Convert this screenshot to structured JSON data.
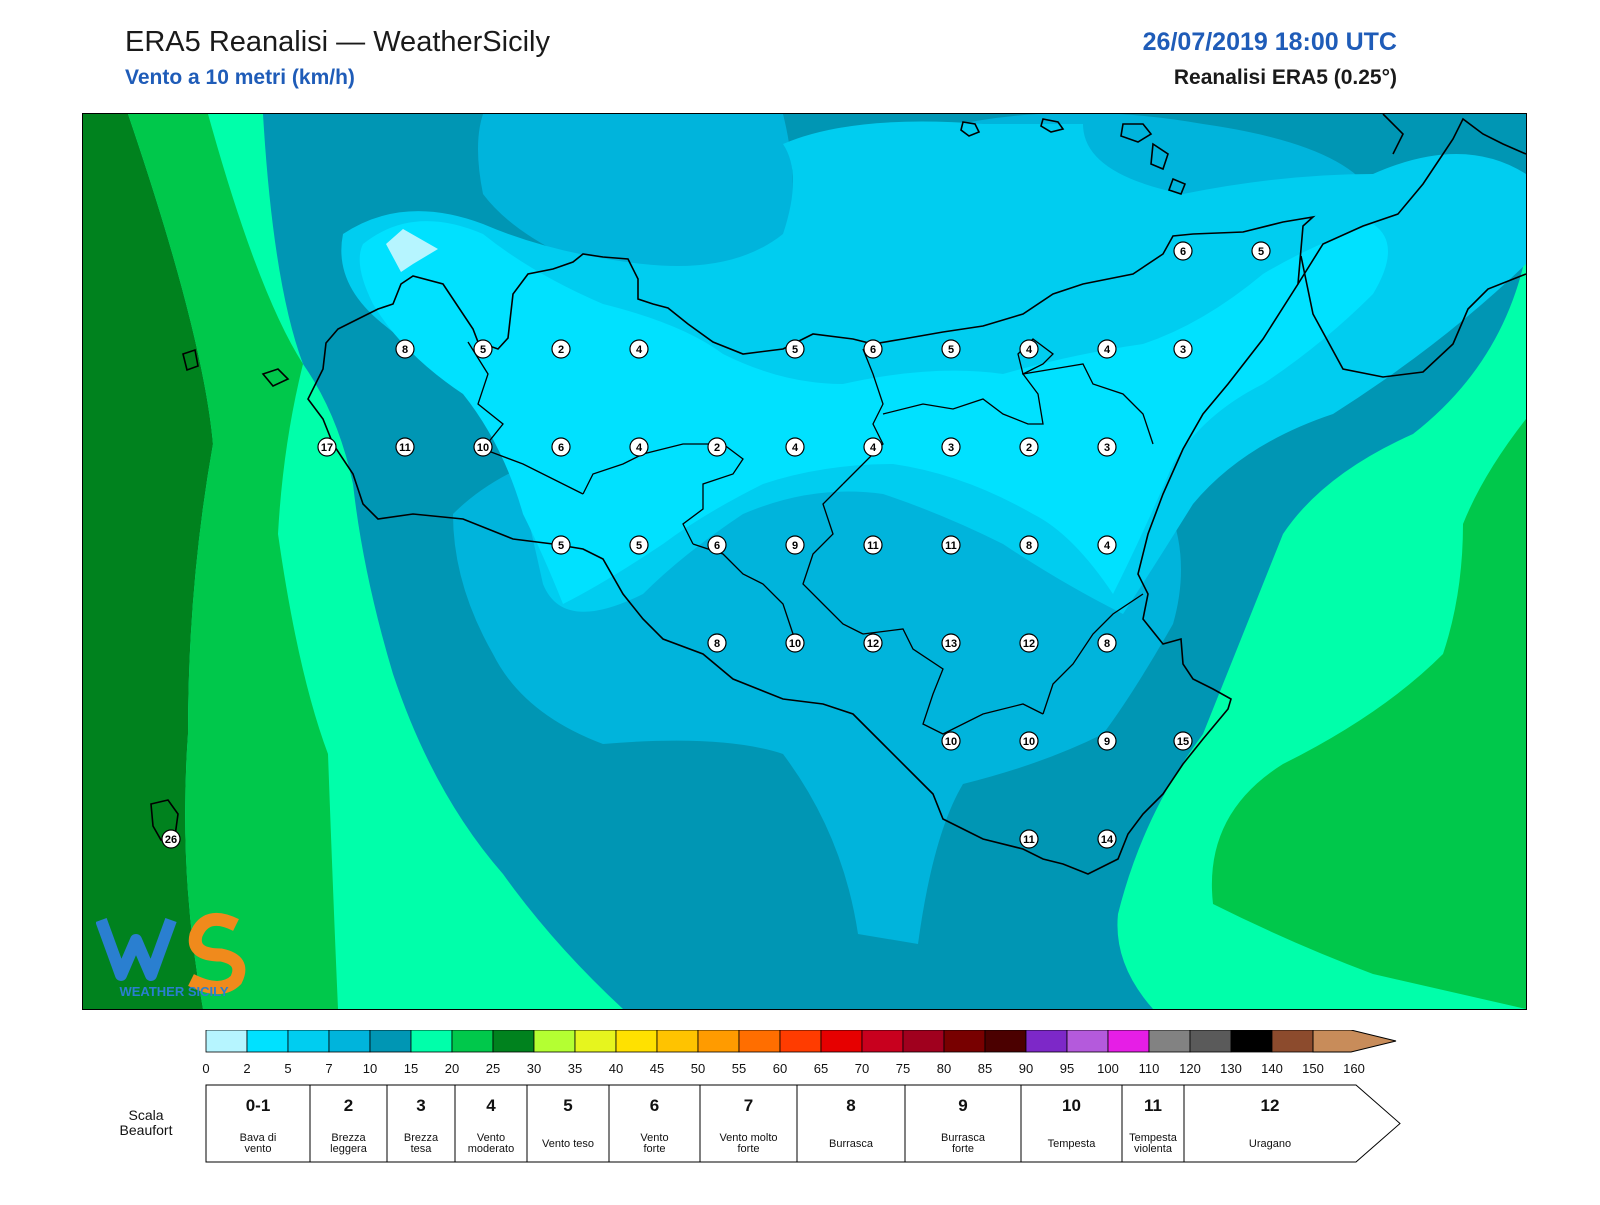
{
  "header": {
    "title": "ERA5 Reanalisi — WeatherSicily",
    "subtitle": "Vento a 10 metri (km/h)",
    "datetime": "26/07/2019 18:00 UTC",
    "source": "Reanalisi ERA5 (0.25°)"
  },
  "logo": {
    "text": "WEATHER SICILY",
    "icon": "weathersicily-ws-logo"
  },
  "map": {
    "variable": "wind speed at 10 m",
    "unit": "km/h",
    "stations": [
      {
        "label": "6"
      },
      {
        "label": "5"
      },
      {
        "label": "8"
      },
      {
        "label": "5"
      },
      {
        "label": "2"
      },
      {
        "label": "4"
      },
      {
        "label": "5"
      },
      {
        "label": "6"
      },
      {
        "label": "5"
      },
      {
        "label": "4"
      },
      {
        "label": "4"
      },
      {
        "label": "3"
      },
      {
        "label": "17"
      },
      {
        "label": "11"
      },
      {
        "label": "10"
      },
      {
        "label": "6"
      },
      {
        "label": "4"
      },
      {
        "label": "2"
      },
      {
        "label": "4"
      },
      {
        "label": "4"
      },
      {
        "label": "3"
      },
      {
        "label": "2"
      },
      {
        "label": "3"
      },
      {
        "label": "5"
      },
      {
        "label": "5"
      },
      {
        "label": "6"
      },
      {
        "label": "9"
      },
      {
        "label": "11"
      },
      {
        "label": "11"
      },
      {
        "label": "8"
      },
      {
        "label": "4"
      },
      {
        "label": "8"
      },
      {
        "label": "10"
      },
      {
        "label": "12"
      },
      {
        "label": "13"
      },
      {
        "label": "12"
      },
      {
        "label": "8"
      },
      {
        "label": "10"
      },
      {
        "label": "10"
      },
      {
        "label": "9"
      },
      {
        "label": "15"
      },
      {
        "label": "11"
      },
      {
        "label": "14"
      },
      {
        "label": "26"
      }
    ]
  },
  "colorbar": {
    "ticks": [
      "0",
      "2",
      "5",
      "7",
      "10",
      "15",
      "20",
      "25",
      "30",
      "35",
      "40",
      "45",
      "50",
      "55",
      "60",
      "65",
      "70",
      "75",
      "80",
      "85",
      "90",
      "95",
      "100",
      "110",
      "120",
      "130",
      "140",
      "150",
      "160"
    ],
    "colors": [
      "#b6f5ff",
      "#00e1ff",
      "#00cdf0",
      "#00b4dc",
      "#0096b4",
      "#00ffaa",
      "#00c84b",
      "#00821e",
      "#b4ff32",
      "#e6f51e",
      "#ffe100",
      "#ffc300",
      "#ff9b00",
      "#ff6e00",
      "#ff3c00",
      "#e60000",
      "#c8001e",
      "#a0001e",
      "#780000",
      "#4b0000",
      "#7d28c8",
      "#b45adc",
      "#e61ee6",
      "#828282",
      "#5a5a5a",
      "#000000",
      "#8c4b2d",
      "#c88c5a"
    ]
  },
  "beaufort": {
    "title_line1": "Scala",
    "title_line2": "Beaufort",
    "classes": [
      {
        "num": "0-1",
        "line1": "Bava di",
        "line2": "vento"
      },
      {
        "num": "2",
        "line1": "Brezza",
        "line2": "leggera"
      },
      {
        "num": "3",
        "line1": "Brezza",
        "line2": "tesa"
      },
      {
        "num": "4",
        "line1": "Vento",
        "line2": "moderato"
      },
      {
        "num": "5",
        "line1": "Vento teso",
        "line2": ""
      },
      {
        "num": "6",
        "line1": "Vento",
        "line2": "forte"
      },
      {
        "num": "7",
        "line1": "Vento molto",
        "line2": "forte"
      },
      {
        "num": "8",
        "line1": "Burrasca",
        "line2": ""
      },
      {
        "num": "9",
        "line1": "Burrasca",
        "line2": "forte"
      },
      {
        "num": "10",
        "line1": "Tempesta",
        "line2": ""
      },
      {
        "num": "11",
        "line1": "Tempesta",
        "line2": "violenta"
      },
      {
        "num": "12",
        "line1": "Uragano",
        "line2": ""
      }
    ]
  }
}
